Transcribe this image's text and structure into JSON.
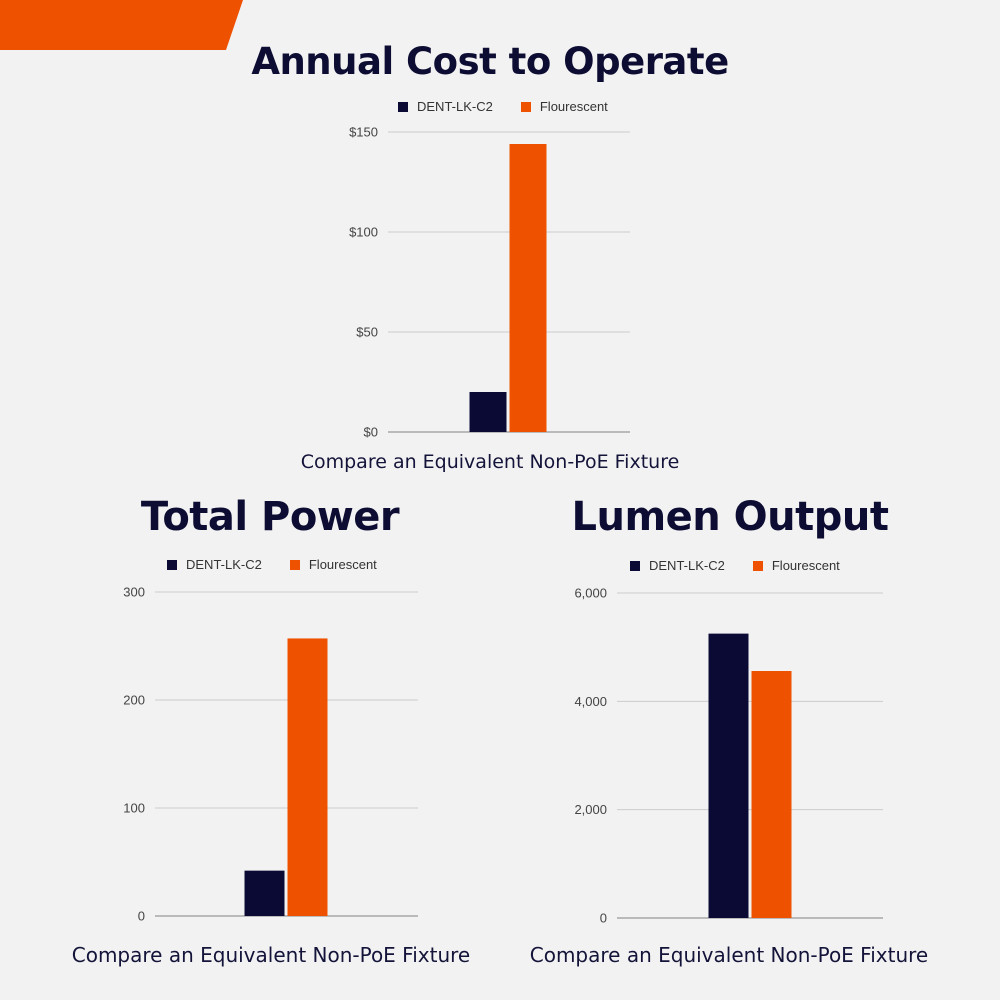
{
  "colors": {
    "background": "#f2f2f2",
    "accent": "#ee5100",
    "navy": "#0a0a35",
    "grid": "#cccccc",
    "axis": "#999999"
  },
  "chart_data": [
    {
      "type": "bar",
      "title": "Annual Cost to Operate",
      "caption": "Compare an Equivalent Non-PoE Fixture",
      "categories": [
        ""
      ],
      "series": [
        {
          "name": "DENT-LK-C2",
          "color": "#0a0a35",
          "values": [
            20
          ]
        },
        {
          "name": "Flourescent",
          "color": "#ee5100",
          "values": [
            144
          ]
        }
      ],
      "ylim": [
        0,
        150
      ],
      "yticks": [
        0,
        50,
        100,
        150
      ],
      "ytick_labels": [
        "$0",
        "$50",
        "$100",
        "$150"
      ],
      "grid": true,
      "legend": "top-center"
    },
    {
      "type": "bar",
      "title": "Total Power",
      "caption": "Compare an Equivalent Non-PoE Fixture",
      "categories": [
        ""
      ],
      "series": [
        {
          "name": "DENT-LK-C2",
          "color": "#0a0a35",
          "values": [
            42
          ]
        },
        {
          "name": "Flourescent",
          "color": "#ee5100",
          "values": [
            257
          ]
        }
      ],
      "ylim": [
        0,
        300
      ],
      "yticks": [
        0,
        100,
        200,
        300
      ],
      "ytick_labels": [
        "0",
        "100",
        "200",
        "300"
      ],
      "grid": true,
      "legend": "top-center"
    },
    {
      "type": "bar",
      "title": "Lumen Output",
      "caption": "Compare an Equivalent Non-PoE Fixture",
      "categories": [
        ""
      ],
      "series": [
        {
          "name": "DENT-LK-C2",
          "color": "#0a0a35",
          "values": [
            5250
          ]
        },
        {
          "name": "Flourescent",
          "color": "#ee5100",
          "values": [
            4560
          ]
        }
      ],
      "ylim": [
        0,
        6000
      ],
      "yticks": [
        0,
        2000,
        4000,
        6000
      ],
      "ytick_labels": [
        "0",
        "2,000",
        "4,000",
        "6,000"
      ],
      "grid": true,
      "legend": "top-center"
    }
  ]
}
